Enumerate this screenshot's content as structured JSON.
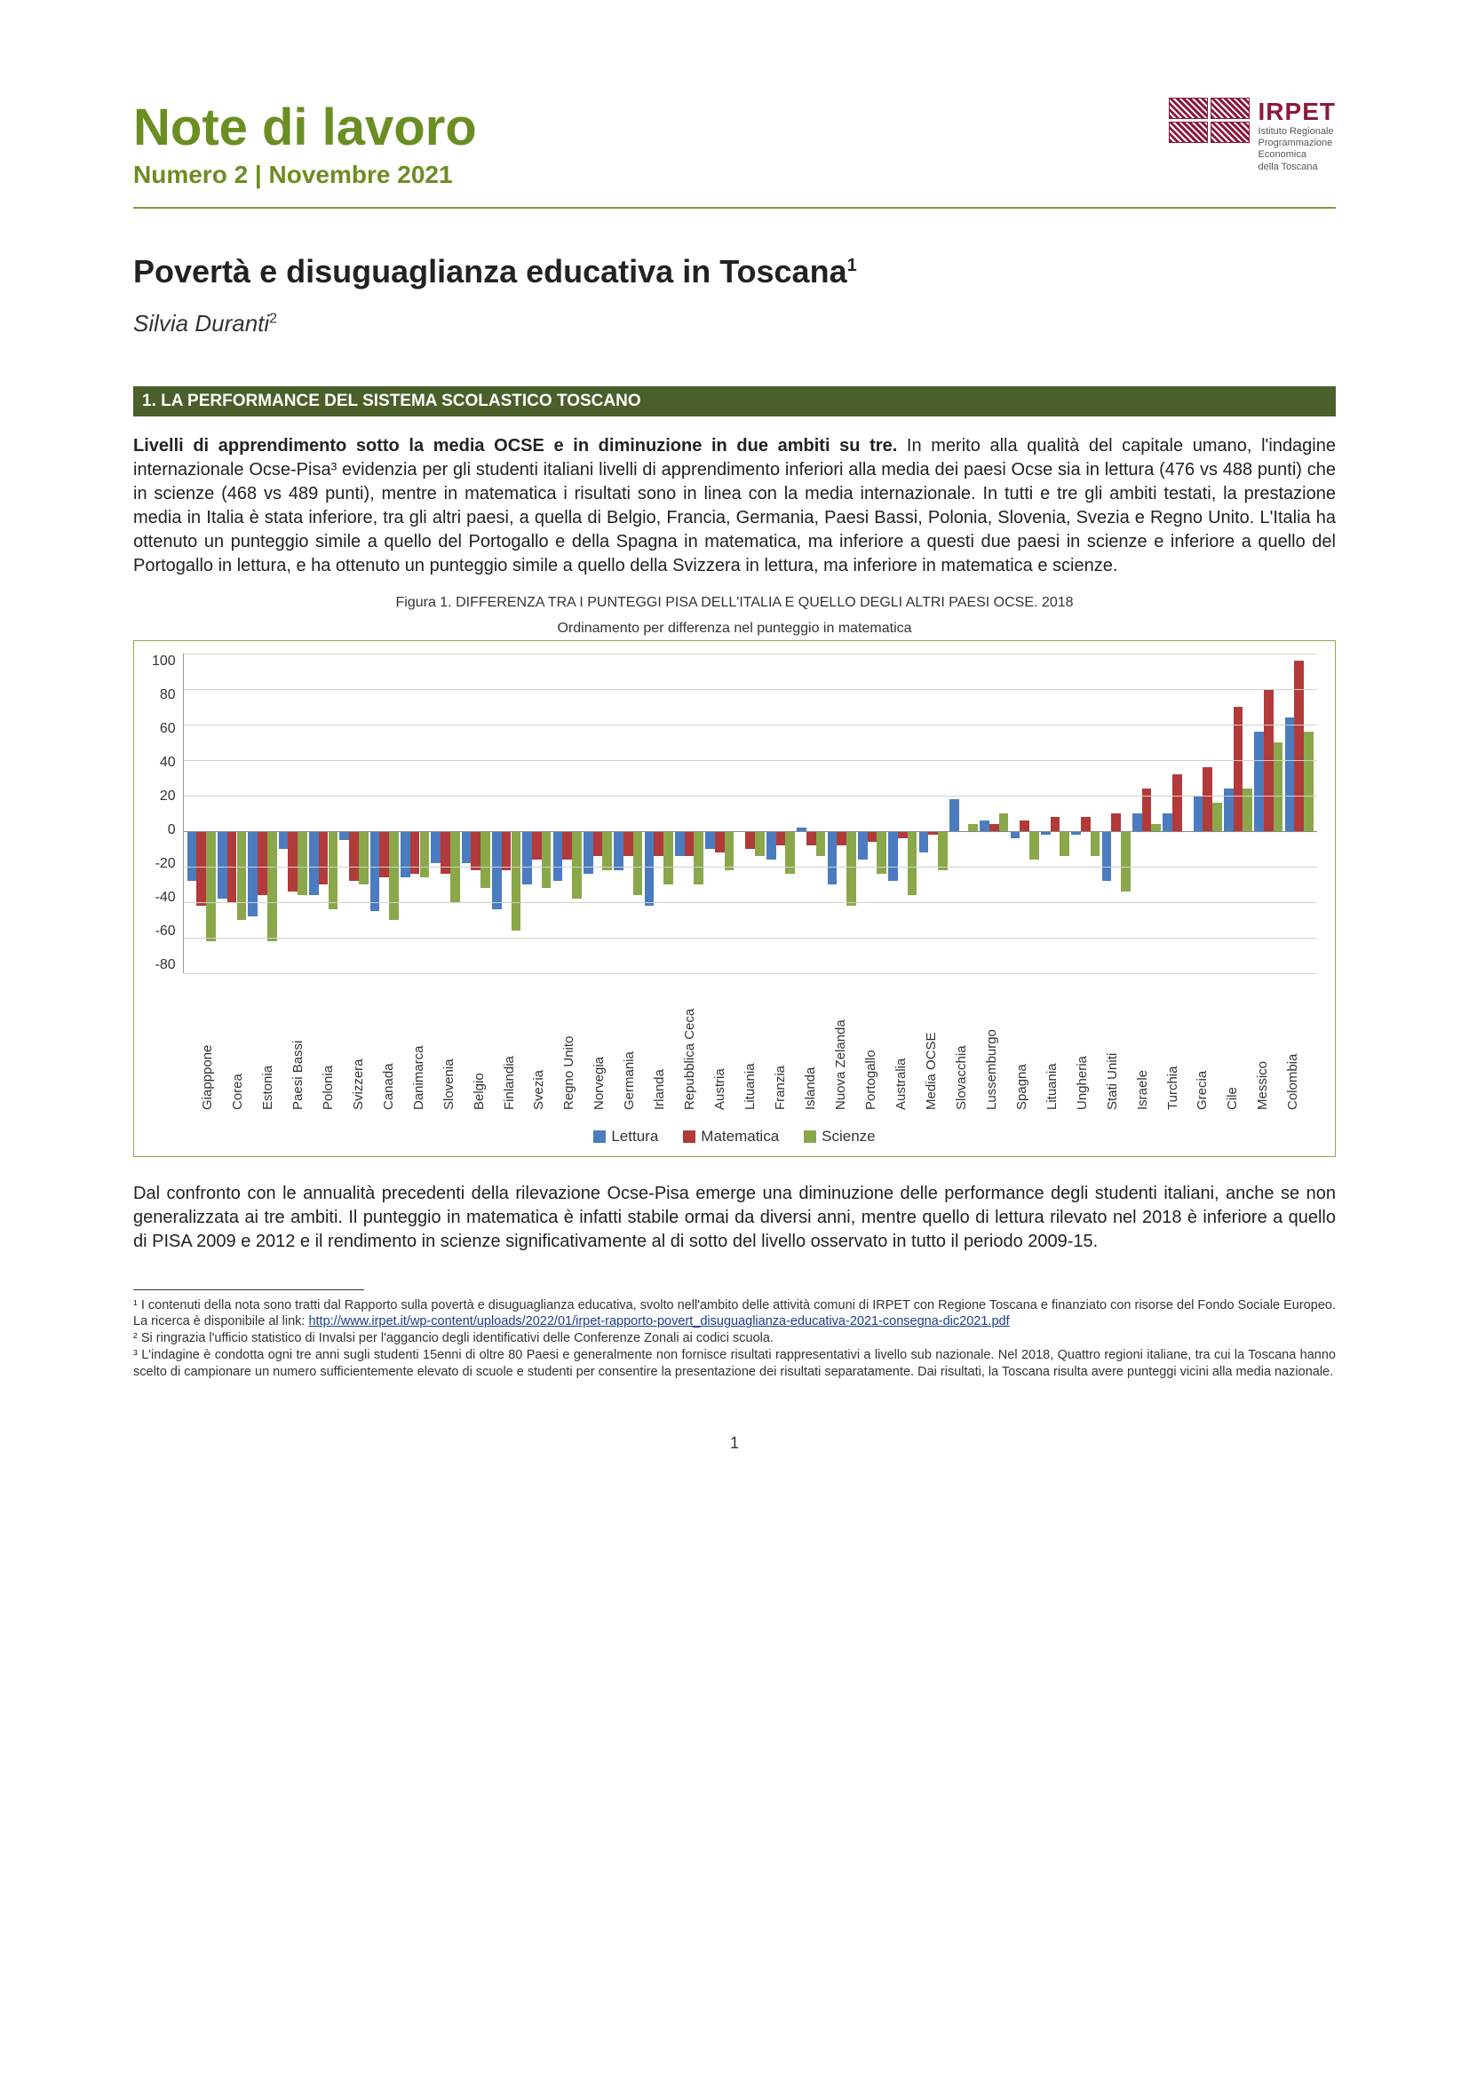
{
  "header": {
    "series_title": "Note di lavoro",
    "series_sub": "Numero 2 | Novembre 2021",
    "logo_acronym": "IRPET",
    "logo_tagline_1": "Istituto Regionale",
    "logo_tagline_2": "Programmazione",
    "logo_tagline_3": "Economica",
    "logo_tagline_4": "della Toscana"
  },
  "title": "Povertà e disuguaglianza educativa in Toscana",
  "title_sup": "1",
  "author": "Silvia Duranti",
  "author_sup": "2",
  "section1_head": "1.  LA PERFORMANCE DEL SISTEMA SCOLASTICO TOSCANO",
  "para1_bold": "Livelli di apprendimento sotto la media OCSE e in diminuzione in due ambiti su tre.",
  "para1_rest": " In merito alla qualità del capitale umano, l'indagine internazionale Ocse-Pisa³ evidenzia per gli studenti italiani livelli di apprendimento inferiori alla media dei paesi Ocse sia in lettura (476 vs 488 punti) che in scienze (468 vs 489 punti), mentre in matematica i risultati sono in linea con la media internazionale. In tutti e tre gli ambiti testati, la prestazione media in Italia è stata inferiore, tra gli altri paesi, a quella di Belgio, Francia, Germania, Paesi Bassi, Polonia, Slovenia, Svezia e Regno Unito. L'Italia ha ottenuto un punteggio simile a quello del Portogallo e della Spagna in matematica, ma inferiore a questi due paesi in scienze e inferiore a quello del Portogallo in lettura, e ha ottenuto un punteggio simile a quello della Svizzera in lettura, ma inferiore in matematica e scienze.",
  "figure_caption_1": "Figura 1. DIFFERENZA TRA I PUNTEGGI PISA DELL'ITALIA E QUELLO DEGLI ALTRI PAESI OCSE. 2018",
  "figure_caption_2": "Ordinamento per differenza nel punteggio in matematica",
  "chart": {
    "type": "grouped-bar",
    "ylim": [
      -80,
      100
    ],
    "ytick_step": 20,
    "yticks": [
      "100",
      "80",
      "60",
      "40",
      "20",
      "0",
      "-20",
      "-40",
      "-60",
      "-80"
    ],
    "series": [
      {
        "name": "Lettura",
        "color": "#4a7cbf"
      },
      {
        "name": "Matematica",
        "color": "#b23a3a"
      },
      {
        "name": "Scienze",
        "color": "#8aa84a"
      }
    ],
    "categories": [
      "Giapppone",
      "Corea",
      "Estonia",
      "Paesi Bassi",
      "Polonia",
      "Svizzera",
      "Canada",
      "Danimarca",
      "Slovenia",
      "Belgio",
      "Finlandia",
      "Svezia",
      "Regno Unito",
      "Norvegia",
      "Germania",
      "Irlanda",
      "Repubblica Ceca",
      "Austria",
      "Lituania",
      "Franzia",
      "Islanda",
      "Nuova Zelanda",
      "Portogallo",
      "Australia",
      "Media OCSE",
      "Slovacchia",
      "Lussemburgo",
      "Spagna",
      "Lituania",
      "Ungheria",
      "Stati Uniti",
      "Israele",
      "Turchia",
      "Grecia",
      "Cile",
      "Messico",
      "Colombia"
    ],
    "data": {
      "Lettura": [
        -28,
        -38,
        -48,
        -10,
        -36,
        -5,
        -45,
        -26,
        -18,
        -18,
        -44,
        -30,
        -28,
        -24,
        -22,
        -42,
        -14,
        -10,
        0,
        -16,
        2,
        -30,
        -16,
        -28,
        -12,
        18,
        6,
        -4,
        -2,
        -2,
        -28,
        10,
        10,
        20,
        24,
        56,
        64
      ],
      "Matematica": [
        -42,
        -40,
        -36,
        -34,
        -30,
        -28,
        -26,
        -24,
        -24,
        -22,
        -22,
        -16,
        -16,
        -14,
        -14,
        -14,
        -14,
        -12,
        -10,
        -8,
        -8,
        -8,
        -6,
        -4,
        -2,
        0,
        4,
        6,
        8,
        8,
        10,
        24,
        32,
        36,
        70,
        80,
        96
      ],
      "Scienze": [
        -62,
        -50,
        -62,
        -36,
        -44,
        -30,
        -50,
        -26,
        -40,
        -32,
        -56,
        -32,
        -38,
        -22,
        -36,
        -30,
        -30,
        -22,
        -14,
        -24,
        -14,
        -42,
        -24,
        -36,
        -22,
        4,
        10,
        -16,
        -14,
        -14,
        -34,
        4,
        0,
        16,
        24,
        50,
        56
      ]
    },
    "legend_labels": {
      "l": "Lettura",
      "m": "Matematica",
      "s": "Scienze"
    },
    "background_color": "#ffffff",
    "grid_color": "#d0d0d0",
    "border_color": "#8aa84a"
  },
  "para2": "Dal confronto con le annualità precedenti della rilevazione Ocse-Pisa emerge una diminuzione delle performance degli studenti italiani, anche se non generalizzata ai tre ambiti. Il punteggio in matematica è infatti stabile ormai da diversi anni, mentre quello di lettura rilevato nel 2018 è inferiore a quello di PISA 2009 e 2012 e il rendimento in scienze significativamente al di sotto del livello osservato in tutto il periodo 2009-15.",
  "footnotes": {
    "f1_a": "¹ I contenuti della nota sono tratti dal Rapporto sulla povertà e disuguaglianza educativa, svolto nell'ambito delle attività comuni di IRPET con Regione Toscana e finanziato con risorse del Fondo Sociale Europeo. La ricerca è disponibile al link: ",
    "f1_link": "http://www.irpet.it/wp-content/uploads/2022/01/irpet-rapporto-povert_disuguaglianza-educativa-2021-consegna-dic2021.pdf",
    "f2": "² Si ringrazia l'ufficio statistico di Invalsi per l'aggancio degli identificativi delle Conferenze Zonali ai codici scuola.",
    "f3": "³ L'indagine è condotta ogni tre anni sugli studenti 15enni di oltre 80 Paesi e generalmente non fornisce risultati rappresentativi a livello sub nazionale. Nel 2018, Quattro regioni italiane, tra cui la Toscana hanno scelto di campionare un numero sufficientemente elevato di scuole e studenti per consentire la presentazione dei risultati separatamente. Dai risultati, la Toscana risulta avere punteggi vicini alla media nazionale."
  },
  "page_number": "1",
  "colors": {
    "olive": "#6b8e23",
    "dark_olive": "#4a5f2a",
    "maroon": "#8b1a3a",
    "blue_bar": "#4a7cbf",
    "red_bar": "#b23a3a",
    "green_bar": "#8aa84a"
  }
}
